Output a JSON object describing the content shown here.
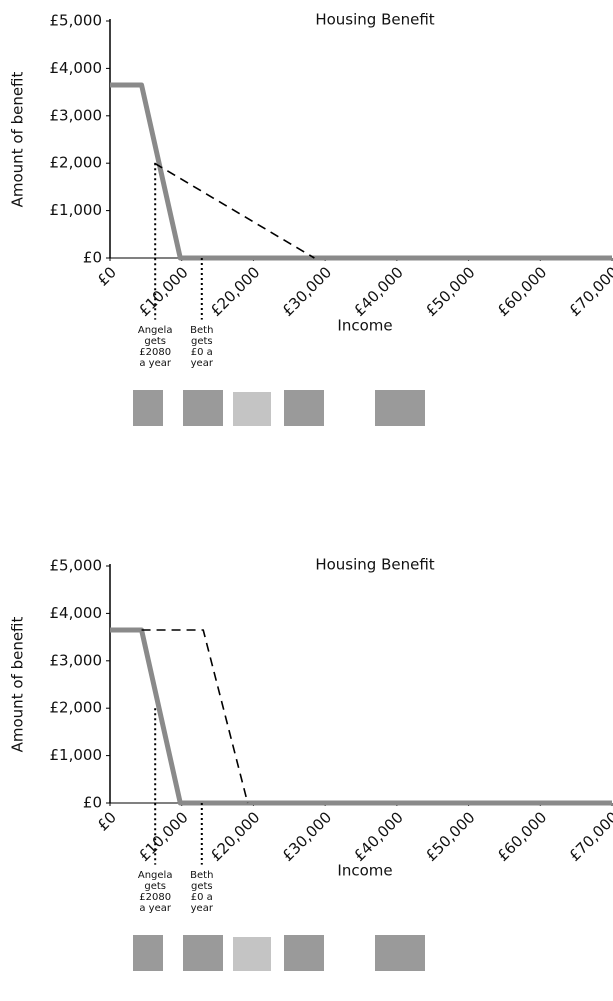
{
  "chart_data": [
    {
      "type": "line",
      "title": "Housing Benefit",
      "x_label": "Income",
      "y_label": "Amount of benefit",
      "xlim": [
        0,
        70000
      ],
      "ylim": [
        0,
        5000
      ],
      "xticks": [
        {
          "value": 0,
          "label": "£0"
        },
        {
          "value": 10000,
          "label": "£10,000"
        },
        {
          "value": 20000,
          "label": "£20,000"
        },
        {
          "value": 30000,
          "label": "£30,000"
        },
        {
          "value": 40000,
          "label": "£40,000"
        },
        {
          "value": 50000,
          "label": "£50,000"
        },
        {
          "value": 60000,
          "label": "£60,000"
        },
        {
          "value": 70000,
          "label": "£70,000"
        }
      ],
      "yticks": [
        {
          "value": 0,
          "label": "£0"
        },
        {
          "value": 1000,
          "label": "£1,000"
        },
        {
          "value": 2000,
          "label": "£2,000"
        },
        {
          "value": 3000,
          "label": "£3,000"
        },
        {
          "value": 4000,
          "label": "£4,000"
        },
        {
          "value": 5000,
          "label": "£5,000"
        }
      ],
      "series": [
        {
          "color": "#8a8a8a",
          "style": "solid",
          "x": [
            0,
            4400,
            9800,
            70000
          ],
          "values": [
            3650,
            3650,
            0,
            0
          ]
        },
        {
          "color": "#000000",
          "style": "dashed",
          "x": [
            6200,
            28500
          ],
          "values": [
            2000,
            0
          ]
        },
        {
          "color": "#000000",
          "style": "dotted",
          "x": [
            6300,
            6300
          ],
          "values": [
            2000,
            -1300
          ]
        },
        {
          "color": "#000000",
          "style": "dotted",
          "x": [
            12800,
            12800
          ],
          "values": [
            0,
            -1300
          ]
        }
      ],
      "annotations": [
        [
          "Angela",
          "gets",
          "£2080",
          "a year"
        ],
        [
          "Beth",
          "gets",
          "£0 a",
          "year"
        ]
      ]
    },
    {
      "type": "line",
      "title": "Housing Benefit",
      "x_label": "Income",
      "y_label": "Amount of benefit",
      "xlim": [
        0,
        70000
      ],
      "ylim": [
        0,
        5000
      ],
      "xticks": [
        {
          "value": 0,
          "label": "£0"
        },
        {
          "value": 10000,
          "label": "£10,000"
        },
        {
          "value": 20000,
          "label": "£20,000"
        },
        {
          "value": 30000,
          "label": "£30,000"
        },
        {
          "value": 40000,
          "label": "£40,000"
        },
        {
          "value": 50000,
          "label": "£50,000"
        },
        {
          "value": 60000,
          "label": "£60,000"
        },
        {
          "value": 70000,
          "label": "£70,000"
        }
      ],
      "yticks": [
        {
          "value": 0,
          "label": "£0"
        },
        {
          "value": 1000,
          "label": "£1,000"
        },
        {
          "value": 2000,
          "label": "£2,000"
        },
        {
          "value": 3000,
          "label": "£3,000"
        },
        {
          "value": 4000,
          "label": "£4,000"
        },
        {
          "value": 5000,
          "label": "£5,000"
        }
      ],
      "series": [
        {
          "color": "#8a8a8a",
          "style": "solid",
          "x": [
            0,
            4400,
            9800,
            70000
          ],
          "values": [
            3650,
            3650,
            0,
            0
          ]
        },
        {
          "color": "#000000",
          "style": "dashed",
          "x": [
            4400,
            13000,
            19200
          ],
          "values": [
            3650,
            3650,
            0
          ]
        },
        {
          "color": "#000000",
          "style": "dotted",
          "x": [
            6300,
            6300
          ],
          "values": [
            2000,
            -1300
          ]
        },
        {
          "color": "#000000",
          "style": "dotted",
          "x": [
            12800,
            12800
          ],
          "values": [
            0,
            -1300
          ]
        }
      ],
      "annotations": [
        [
          "Angela",
          "gets",
          "£2080",
          "a year"
        ],
        [
          "Beth",
          "gets",
          "£0 a",
          "year"
        ]
      ]
    }
  ]
}
